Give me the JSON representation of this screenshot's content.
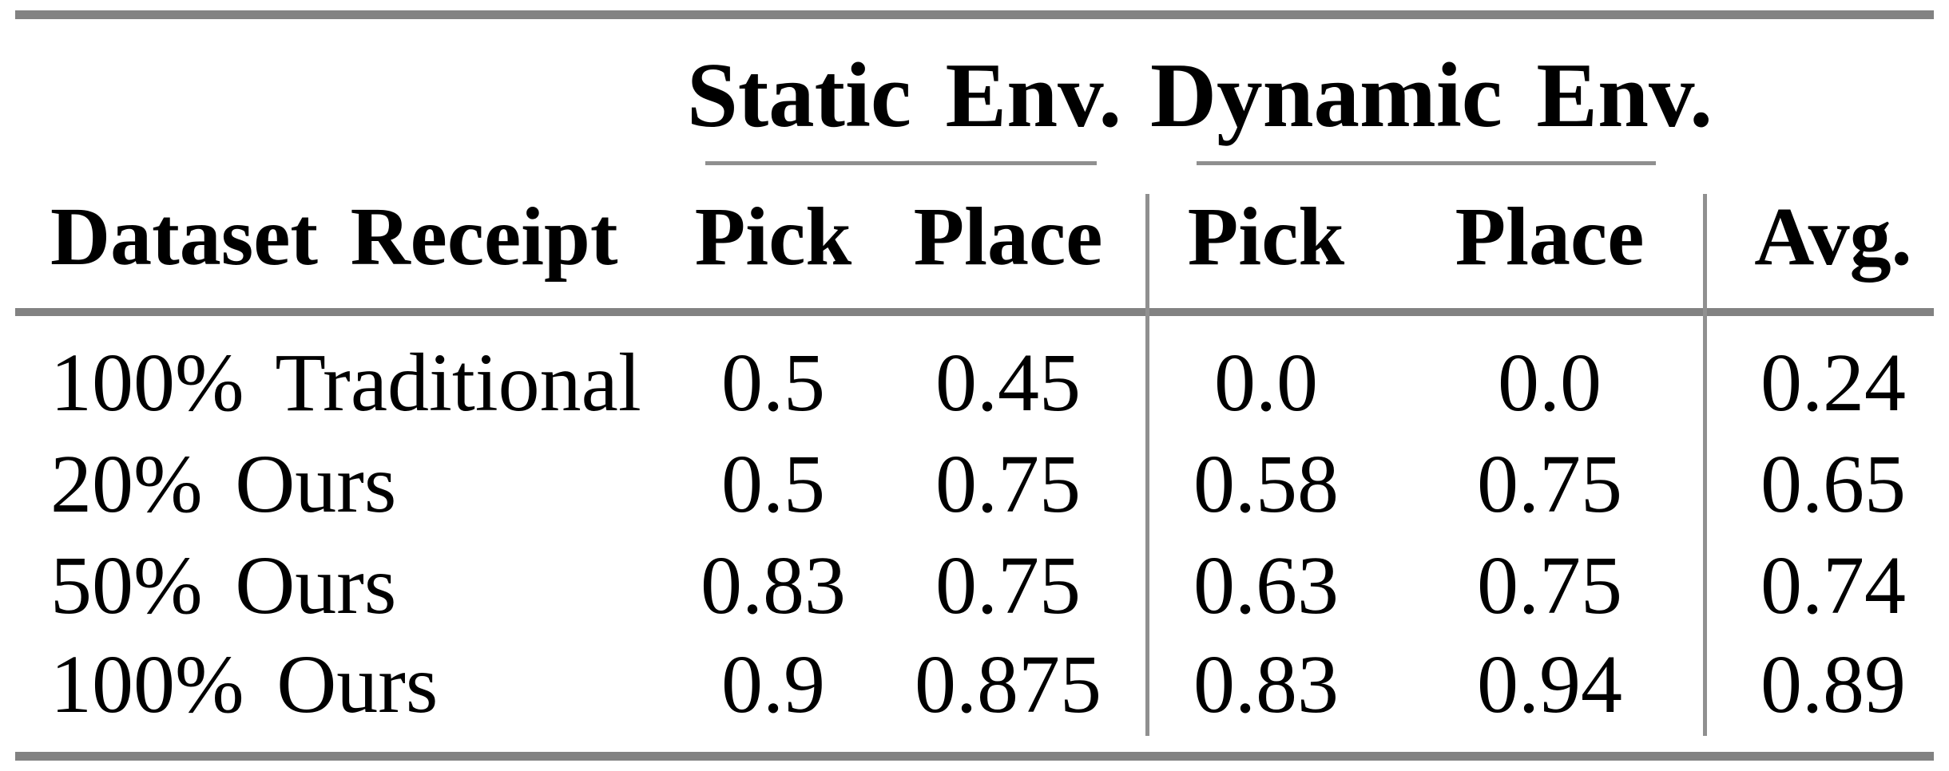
{
  "table": {
    "group_headers": {
      "static": "Static Env.",
      "dynamic": "Dynamic Env."
    },
    "columns": {
      "dataset": "Dataset Receipt",
      "static_pick": "Pick",
      "static_place": "Place",
      "dynamic_pick": "Pick",
      "dynamic_place": "Place",
      "avg": "Avg."
    },
    "rows": [
      {
        "label": "100% Traditional",
        "static_pick": "0.5",
        "static_place": "0.45",
        "dynamic_pick": "0.0",
        "dynamic_place": "0.0",
        "avg": "0.24"
      },
      {
        "label": "20% Ours",
        "static_pick": "0.5",
        "static_place": "0.75",
        "dynamic_pick": "0.58",
        "dynamic_place": "0.75",
        "avg": "0.65"
      },
      {
        "label": "50% Ours",
        "static_pick": "0.83",
        "static_place": "0.75",
        "dynamic_pick": "0.63",
        "dynamic_place": "0.75",
        "avg": "0.74"
      },
      {
        "label": "100% Ours",
        "static_pick": "0.9",
        "static_place": "0.875",
        "dynamic_pick": "0.83",
        "dynamic_place": "0.94",
        "avg": "0.89"
      }
    ]
  },
  "colors": {
    "background": "#ffffff",
    "text": "#000000",
    "thick_rule": "#828282",
    "thin_rule": "#8f8f8f",
    "vertical_rule": "#909090"
  }
}
